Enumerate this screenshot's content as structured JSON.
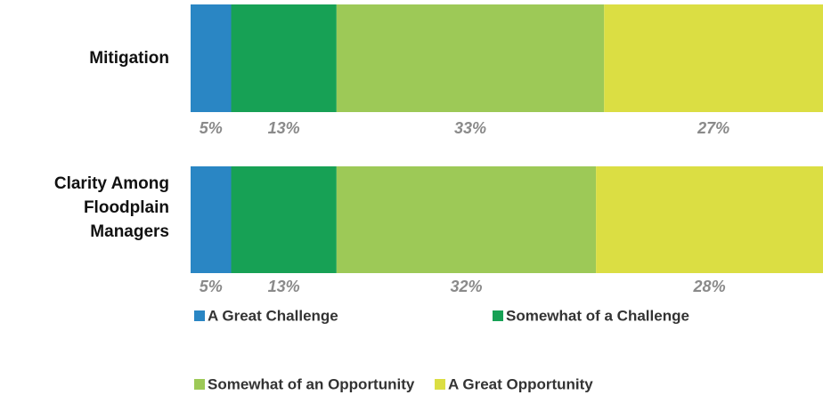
{
  "chart_data": {
    "type": "stacked-bar-horizontal",
    "categories": [
      "Mitigation",
      "Clarity Among Floodplain Managers"
    ],
    "series": [
      {
        "name": "A Great Challenge",
        "color": "#2a86c4",
        "values": [
          5,
          5
        ],
        "value_labels": [
          "5%",
          "5%"
        ]
      },
      {
        "name": "Somewhat of a Challenge",
        "color": "#17a155",
        "values": [
          13,
          13
        ],
        "value_labels": [
          "13%",
          "13%"
        ]
      },
      {
        "name": "Somewhat of an Opportunity",
        "color": "#9dc957",
        "values": [
          33,
          32
        ],
        "value_labels": [
          "33%",
          "32%"
        ]
      },
      {
        "name": "A Great Opportunity",
        "color": "#dbde43",
        "values": [
          27,
          28
        ],
        "value_labels": [
          "27%",
          "28%"
        ]
      }
    ],
    "xlim": [
      0,
      78
    ]
  }
}
